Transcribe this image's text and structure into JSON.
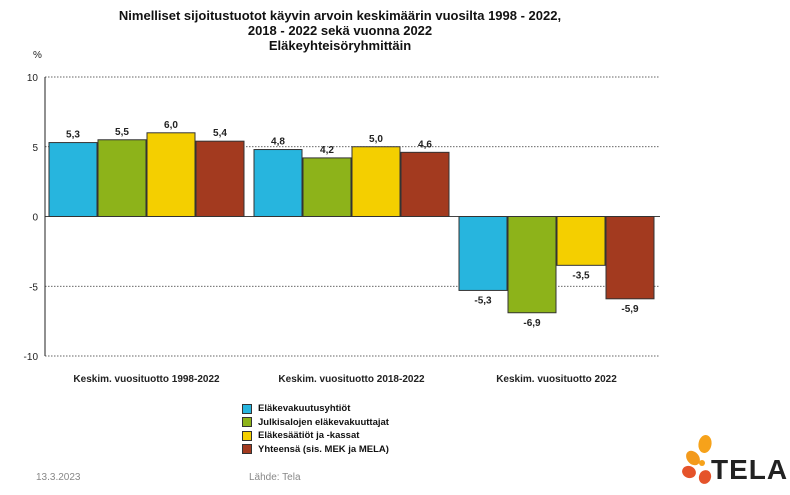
{
  "title_lines": [
    "Nimelliset sijoitustuotot käyvin arvoin keskimäärin vuosilta 1998 - 2022,",
    "2018 - 2022 sekä vuonna 2022",
    "Eläkeyhteisöryhmittäin"
  ],
  "footer": {
    "date": "13.3.2023",
    "source": "Lähde: Tela"
  },
  "logo": {
    "text": "TELA",
    "icon": "tela-flower-logo"
  },
  "chart_data": {
    "type": "bar",
    "ylabel": "%",
    "ylim": [
      -10,
      10
    ],
    "yticks": [
      10,
      5,
      0,
      -5,
      -10
    ],
    "grid": "horizontal-dashed",
    "legend_position": "bottom-center",
    "categories": [
      "Keskim. vuosituotto 1998-2022",
      "Keskim. vuosituotto 2018-2022",
      "Keskim. vuosituotto 2022"
    ],
    "series": [
      {
        "name": "Eläkevakuutusyhtiöt",
        "color": "#27b5de",
        "values": [
          5.3,
          4.8,
          -5.3
        ],
        "labels": [
          "5,3",
          "4,8",
          "-5,3"
        ]
      },
      {
        "name": "Julkisalojen eläkevakuuttajat",
        "color": "#8db31a",
        "values": [
          5.5,
          4.2,
          -6.9
        ],
        "labels": [
          "5,5",
          "4,2",
          "-6,9"
        ]
      },
      {
        "name": "Eläkesäätiöt ja -kassat",
        "color": "#f4cf00",
        "values": [
          6.0,
          5.0,
          -3.5
        ],
        "labels": [
          "6,0",
          "5,0",
          "-3,5"
        ]
      },
      {
        "name": "Yhteensä (sis. MEK ja MELA)",
        "color": "#a33a1f",
        "values": [
          5.4,
          4.6,
          -5.9
        ],
        "labels": [
          "5,4",
          "4,6",
          "-5,9"
        ]
      }
    ]
  }
}
